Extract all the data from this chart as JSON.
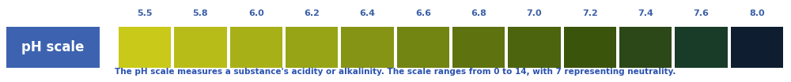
{
  "ph_labels": [
    "5.5",
    "5.8",
    "6.0",
    "6.2",
    "6.4",
    "6.6",
    "6.8",
    "7.0",
    "7.2",
    "7.4",
    "7.6",
    "8.0"
  ],
  "bar_colors": [
    "#c9c91a",
    "#b8bc18",
    "#a8b018",
    "#96a415",
    "#869415",
    "#728412",
    "#5e7210",
    "#4c640e",
    "#3a540c",
    "#2c4818",
    "#183c28",
    "#0e1e30"
  ],
  "label_box_text": "pH scale",
  "label_box_bg": "#3d63b0",
  "label_box_text_color": "#ffffff",
  "ph_label_color": "#3a5fa8",
  "caption": "The pH scale measures a substance's acidity or alkalinity. The scale ranges from 0 to 14, with 7 representing neutrality.",
  "caption_color": "#2a52b0",
  "background_color": "#ffffff",
  "fig_width": 10.0,
  "fig_height": 1.04,
  "dpi": 100
}
